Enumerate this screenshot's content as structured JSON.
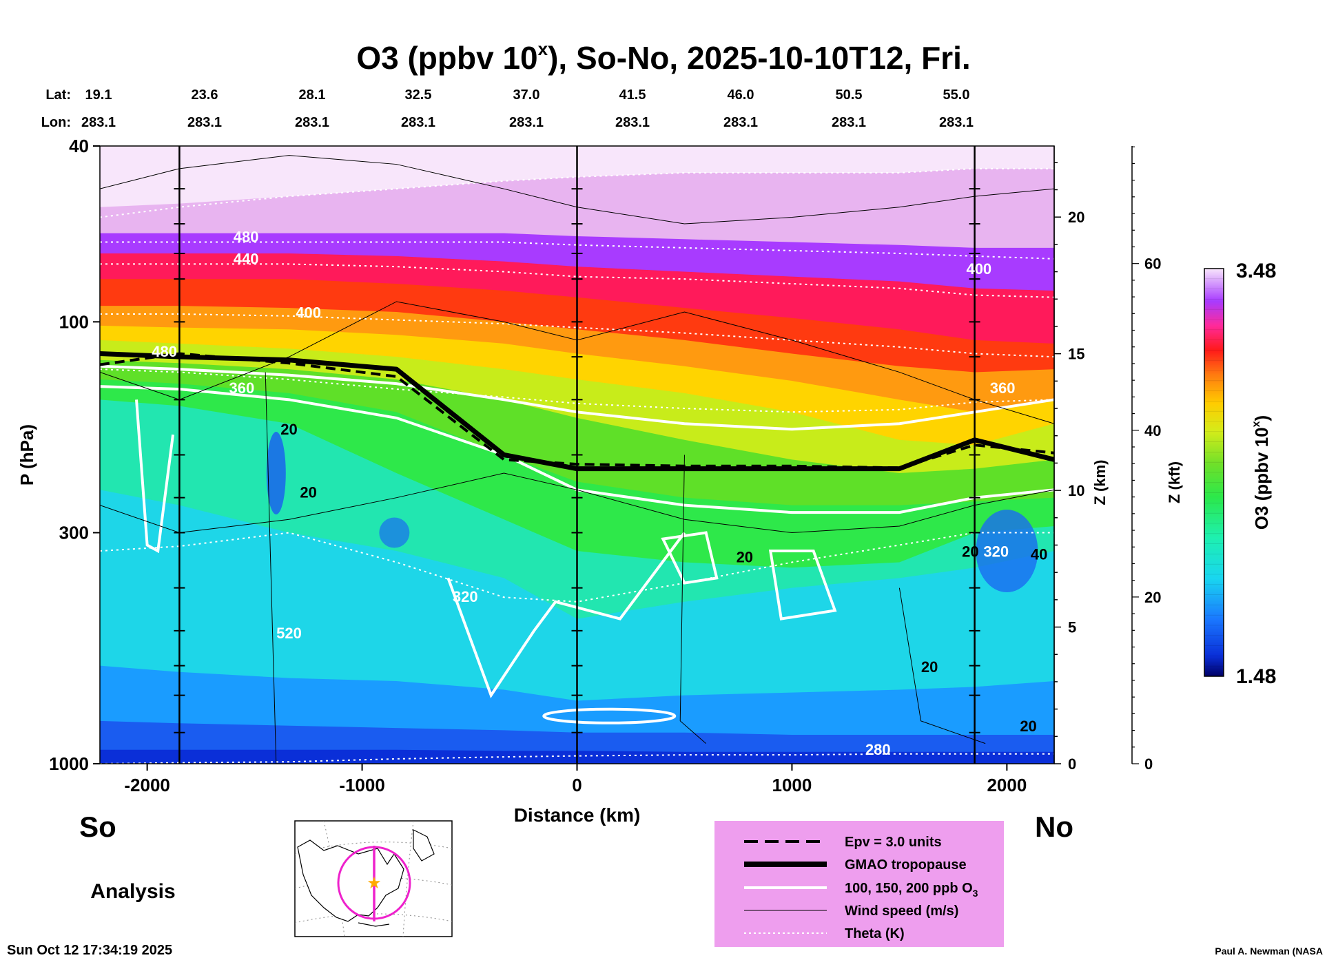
{
  "title": "O3 (ppbv 10",
  "title_sup": "x",
  "title_rest": "), So-No, 2025-10-10T12, Fri.",
  "header": {
    "lat_label": "Lat:",
    "lon_label": "Lon:",
    "lats": [
      "19.1",
      "23.6",
      "28.1",
      "32.5",
      "37.0",
      "41.5",
      "46.0",
      "50.5",
      "55.0"
    ],
    "lons": [
      "283.1",
      "283.1",
      "283.1",
      "283.1",
      "283.1",
      "283.1",
      "283.1",
      "283.1",
      "283.1"
    ]
  },
  "chart_data": {
    "type": "heatmap",
    "x": [
      -2220,
      -1850,
      -1340,
      -840,
      -340,
      0,
      500,
      1000,
      1500,
      1850,
      2220
    ],
    "xlim": [
      -2220,
      2220
    ],
    "xticks": [
      -2000,
      -1000,
      0,
      1000,
      2000
    ],
    "xtick_labels": [
      "-2000",
      "-1000",
      "0",
      "1000",
      "2000"
    ],
    "xlabel": "Distance (km)",
    "ylabel": "P (hPa)",
    "ylim": [
      1000,
      40
    ],
    "yscale": "log",
    "yticks": [
      40,
      100,
      300,
      1000
    ],
    "ytick_labels": [
      "40",
      "100",
      "300",
      "1000"
    ],
    "z_km_ticks": [
      0,
      5,
      10,
      15,
      20
    ],
    "z_km_label": "Z (km)",
    "z_kft_ticks": [
      0,
      20,
      40,
      60
    ],
    "z_kft_label": "Z (kft)",
    "colorbar": {
      "label": "O3 (ppbv 10",
      "label_sup": "x",
      "label_end": ")",
      "min": "1.48",
      "max": "3.48"
    },
    "tropopause_hpa": [
      118,
      120,
      122,
      128,
      200,
      215,
      215,
      215,
      215,
      185,
      205
    ],
    "epv_hpa": [
      125,
      118,
      124,
      133,
      205,
      210,
      212,
      212,
      214,
      190,
      198
    ],
    "theta_contours": [
      {
        "level": "520",
        "hpa": [
          58,
          55,
          52,
          50,
          48,
          47,
          46,
          46,
          46,
          45,
          45
        ]
      },
      {
        "level": "480",
        "hpa": [
          66,
          66,
          66,
          66,
          66,
          67,
          68,
          69,
          70,
          71,
          72
        ]
      },
      {
        "level": "440",
        "hpa": [
          74,
          74,
          74,
          75,
          77,
          79,
          80,
          82,
          84,
          87,
          88
        ]
      },
      {
        "level": "400",
        "hpa": [
          96,
          96,
          97,
          99,
          101,
          103,
          106,
          110,
          114,
          118,
          120
        ]
      },
      {
        "level": "360",
        "hpa": [
          128,
          130,
          135,
          142,
          148,
          153,
          157,
          160,
          158,
          152,
          150
        ]
      },
      {
        "level": "320",
        "hpa": [
          330,
          322,
          300,
          350,
          420,
          430,
          390,
          350,
          320,
          300,
          300
        ]
      },
      {
        "level": "280",
        "hpa": [
          1000,
          995,
          990,
          975,
          965,
          960,
          955,
          955,
          950,
          950,
          950
        ]
      }
    ],
    "o3_contour_labels": [
      "320",
      "20"
    ],
    "wind_labels": [
      "20",
      "20",
      "20",
      "20",
      "20",
      "20",
      "40"
    ],
    "theta_labels": [
      "520",
      "480",
      "440",
      "400",
      "360",
      "320",
      "280"
    ]
  },
  "side_labels": {
    "south": "So",
    "north": "No"
  },
  "analysis_label": "Analysis",
  "legend": {
    "items": [
      "Epv = 3.0 units",
      "GMAO tropopause",
      "100, 150, 200 ppb O",
      "Wind speed (m/s)",
      "Theta (K)"
    ],
    "o3_sub": "3"
  },
  "timestamp": "Sun Oct 12 17:34:19 2025",
  "credit": "Paul A. Newman (NASA",
  "colors": {
    "legend_bg": "#ee9eee",
    "map_track": "#ee22cc",
    "map_star": "#ffaa00"
  }
}
